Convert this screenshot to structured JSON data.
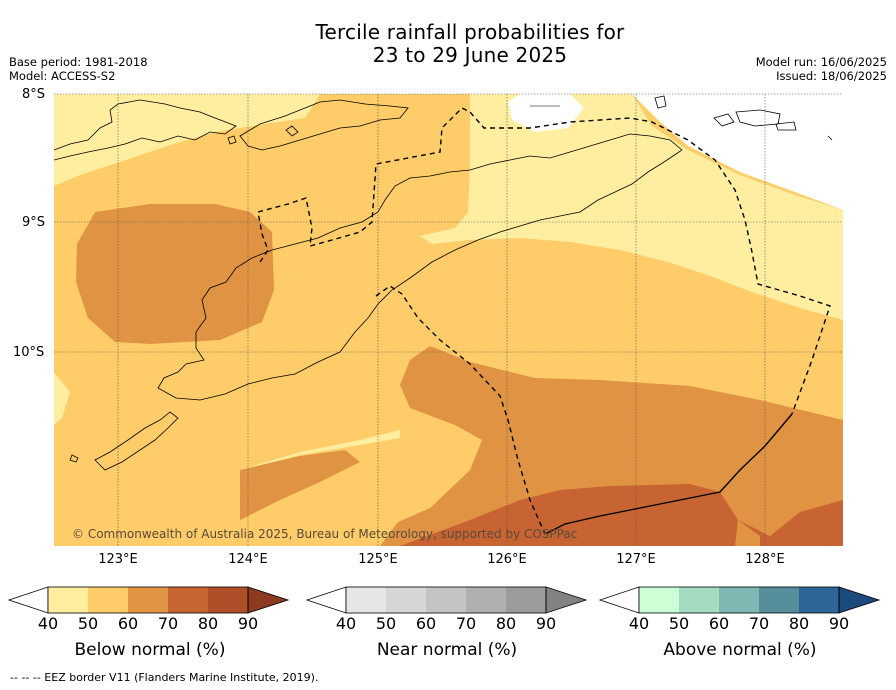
{
  "title": {
    "line1": "Tercile rainfall probabilities for",
    "line2": "23 to 29 June 2025"
  },
  "meta": {
    "base_period": "Base period: 1981-2018",
    "model": "Model: ACCESS-S2",
    "model_run": "Model run: 16/06/2025",
    "issued": "Issued: 18/06/2025"
  },
  "map": {
    "lat_labels": [
      "8°S",
      "9°S",
      "10°S"
    ],
    "lon_labels": [
      "123°E",
      "124°E",
      "125°E",
      "126°E",
      "127°E",
      "128°E"
    ],
    "copyright": "© Commonwealth of Australia 2025, Bureau of Meteorology, supported by COSPPac",
    "colors": {
      "below_40_50": "#ffeea0",
      "below_50_60": "#fecc69",
      "below_60_70": "#e09443",
      "below_70_80": "#c86432",
      "below_80_90": "#ae4f2a",
      "below_90plus": "#8c3a22",
      "land_line": "#000000",
      "eez_line": "#000000"
    }
  },
  "colorbars": [
    {
      "title": "Below normal (%)",
      "ticks": [
        "40",
        "50",
        "60",
        "70",
        "80",
        "90"
      ],
      "colors": [
        "#ffffff",
        "#ffeea0",
        "#fecc69",
        "#e09443",
        "#c86432",
        "#ae4f2a",
        "#8c3a22"
      ]
    },
    {
      "title": "Near normal (%)",
      "ticks": [
        "40",
        "50",
        "60",
        "70",
        "80",
        "90"
      ],
      "colors": [
        "#ffffff",
        "#e6e6e6",
        "#d6d6d6",
        "#c4c4c4",
        "#b0b0b0",
        "#9c9c9c",
        "#828282"
      ]
    },
    {
      "title": "Above normal (%)",
      "ticks": [
        "40",
        "50",
        "60",
        "70",
        "80",
        "90"
      ],
      "colors": [
        "#ffffff",
        "#ccffd6",
        "#a3dcc0",
        "#7fb8b2",
        "#568e9c",
        "#2e6496",
        "#1a4a7e"
      ]
    }
  ],
  "footnote": "--  --  -- EEZ border V11 (Flanders Marine Institute, 2019)."
}
